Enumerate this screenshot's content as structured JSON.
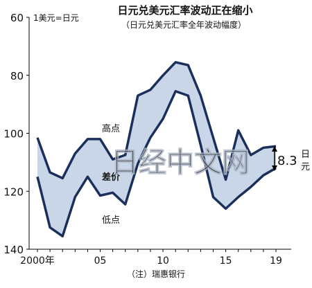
{
  "chart_data": {
    "type": "area",
    "title": "日元兑美元汇率波动正在缩小",
    "subtitle": "（日元兑美元汇率全年波动幅度）",
    "ylabel": "1美元=日元",
    "ylim": [
      60,
      140
    ],
    "y_inverted": true,
    "yticks": [
      60,
      80,
      100,
      120,
      140
    ],
    "x": [
      2000,
      2001,
      2002,
      2003,
      2004,
      2005,
      2006,
      2007,
      2008,
      2009,
      2010,
      2011,
      2012,
      2013,
      2014,
      2015,
      2016,
      2017,
      2018,
      2019
    ],
    "xticks": [
      {
        "value": 2000,
        "label": "2000年"
      },
      {
        "value": 2005,
        "label": "05"
      },
      {
        "value": 2010,
        "label": "10"
      },
      {
        "value": 2015,
        "label": "15"
      },
      {
        "value": 2019,
        "label": "19"
      }
    ],
    "series": [
      {
        "name": "高点",
        "values": [
          101.5,
          113.5,
          115.5,
          107,
          102,
          102,
          109,
          107.5,
          87,
          85,
          80,
          75.5,
          76.5,
          87,
          101.5,
          116,
          99,
          107.5,
          105,
          104.5
        ]
      },
      {
        "name": "低点",
        "values": [
          115,
          132.5,
          135.5,
          122,
          115,
          121.5,
          120.5,
          124.5,
          110.5,
          101.5,
          95,
          85.5,
          87,
          104,
          122,
          126,
          122,
          118.5,
          114.5,
          112
        ]
      }
    ],
    "annotations": [
      {
        "text": "差价"
      },
      {
        "text": "8.3"
      },
      {
        "text": "日元"
      }
    ],
    "source": "（注）瑞惠银行",
    "watermark": "日经中文网",
    "colors": {
      "band": "#c8d6e8",
      "line": "#1a2f5a"
    }
  }
}
